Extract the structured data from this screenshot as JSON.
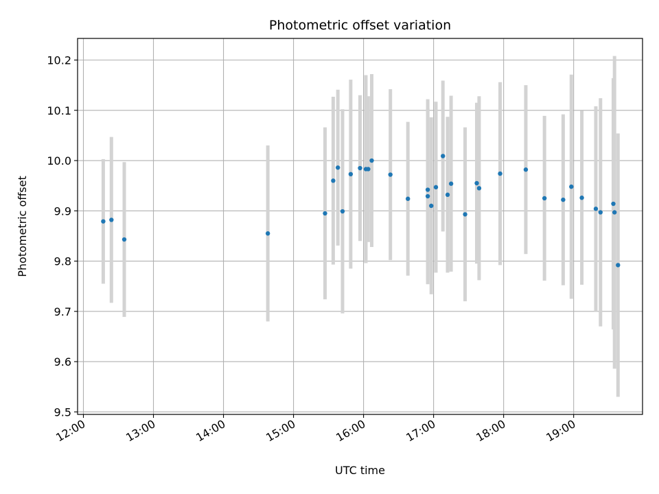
{
  "chart_data": {
    "type": "scatter",
    "title": "Photometric offset variation",
    "xlabel": "UTC time",
    "ylabel": "Photometric offset",
    "x_tick_labels": [
      "12:00",
      "13:00",
      "14:00",
      "15:00",
      "16:00",
      "17:00",
      "18:00",
      "19:00"
    ],
    "y_ticks": [
      9.5,
      9.6,
      9.7,
      9.8,
      9.9,
      10.0,
      10.1,
      10.2
    ],
    "y_tick_labels": [
      "9.5",
      "9.6",
      "9.7",
      "9.8",
      "9.9",
      "10.0",
      "10.1",
      "10.2"
    ],
    "xlim": [
      "11:55",
      "19:59"
    ],
    "ylim": [
      9.495,
      10.243
    ],
    "grid": true,
    "colors": {
      "point": "#1f77b4",
      "errorbar": "#d3d3d3",
      "grid": "#b0b0b0"
    },
    "points": [
      {
        "t": "12:17",
        "y": 9.879,
        "err": 0.124
      },
      {
        "t": "12:24",
        "y": 9.882,
        "err": 0.165
      },
      {
        "t": "12:35",
        "y": 9.843,
        "err": 0.154
      },
      {
        "t": "14:38",
        "y": 9.855,
        "err": 0.175
      },
      {
        "t": "15:27",
        "y": 9.895,
        "err": 0.171
      },
      {
        "t": "15:34",
        "y": 9.96,
        "err": 0.167
      },
      {
        "t": "15:38",
        "y": 9.986,
        "err": 0.155
      },
      {
        "t": "15:42",
        "y": 9.899,
        "err": 0.203
      },
      {
        "t": "15:49",
        "y": 9.973,
        "err": 0.188
      },
      {
        "t": "15:57",
        "y": 9.985,
        "err": 0.145
      },
      {
        "t": "16:02",
        "y": 9.983,
        "err": 0.187
      },
      {
        "t": "16:04",
        "y": 9.983,
        "err": 0.145
      },
      {
        "t": "16:07",
        "y": 10.0,
        "err": 0.172
      },
      {
        "t": "16:23",
        "y": 9.972,
        "err": 0.17
      },
      {
        "t": "16:38",
        "y": 9.924,
        "err": 0.153
      },
      {
        "t": "16:55",
        "y": 9.929,
        "err": 0.175
      },
      {
        "t": "16:55",
        "y": 9.942,
        "err": 0.18
      },
      {
        "t": "16:58",
        "y": 9.91,
        "err": 0.176
      },
      {
        "t": "17:02",
        "y": 9.947,
        "err": 0.17
      },
      {
        "t": "17:08",
        "y": 10.009,
        "err": 0.15
      },
      {
        "t": "17:12",
        "y": 9.932,
        "err": 0.155
      },
      {
        "t": "17:15",
        "y": 9.954,
        "err": 0.175
      },
      {
        "t": "17:27",
        "y": 9.893,
        "err": 0.173
      },
      {
        "t": "17:37",
        "y": 9.955,
        "err": 0.16
      },
      {
        "t": "17:39",
        "y": 9.945,
        "err": 0.183
      },
      {
        "t": "17:57",
        "y": 9.974,
        "err": 0.182
      },
      {
        "t": "18:19",
        "y": 9.982,
        "err": 0.168
      },
      {
        "t": "18:35",
        "y": 9.925,
        "err": 0.164
      },
      {
        "t": "18:51",
        "y": 9.922,
        "err": 0.17
      },
      {
        "t": "18:58",
        "y": 9.948,
        "err": 0.223
      },
      {
        "t": "19:07",
        "y": 9.926,
        "err": 0.173
      },
      {
        "t": "19:19",
        "y": 9.904,
        "err": 0.204
      },
      {
        "t": "19:23",
        "y": 9.897,
        "err": 0.227
      },
      {
        "t": "19:34",
        "y": 9.914,
        "err": 0.25
      },
      {
        "t": "19:35",
        "y": 9.897,
        "err": 0.311
      },
      {
        "t": "19:38",
        "y": 9.792,
        "err": 0.262
      }
    ]
  }
}
